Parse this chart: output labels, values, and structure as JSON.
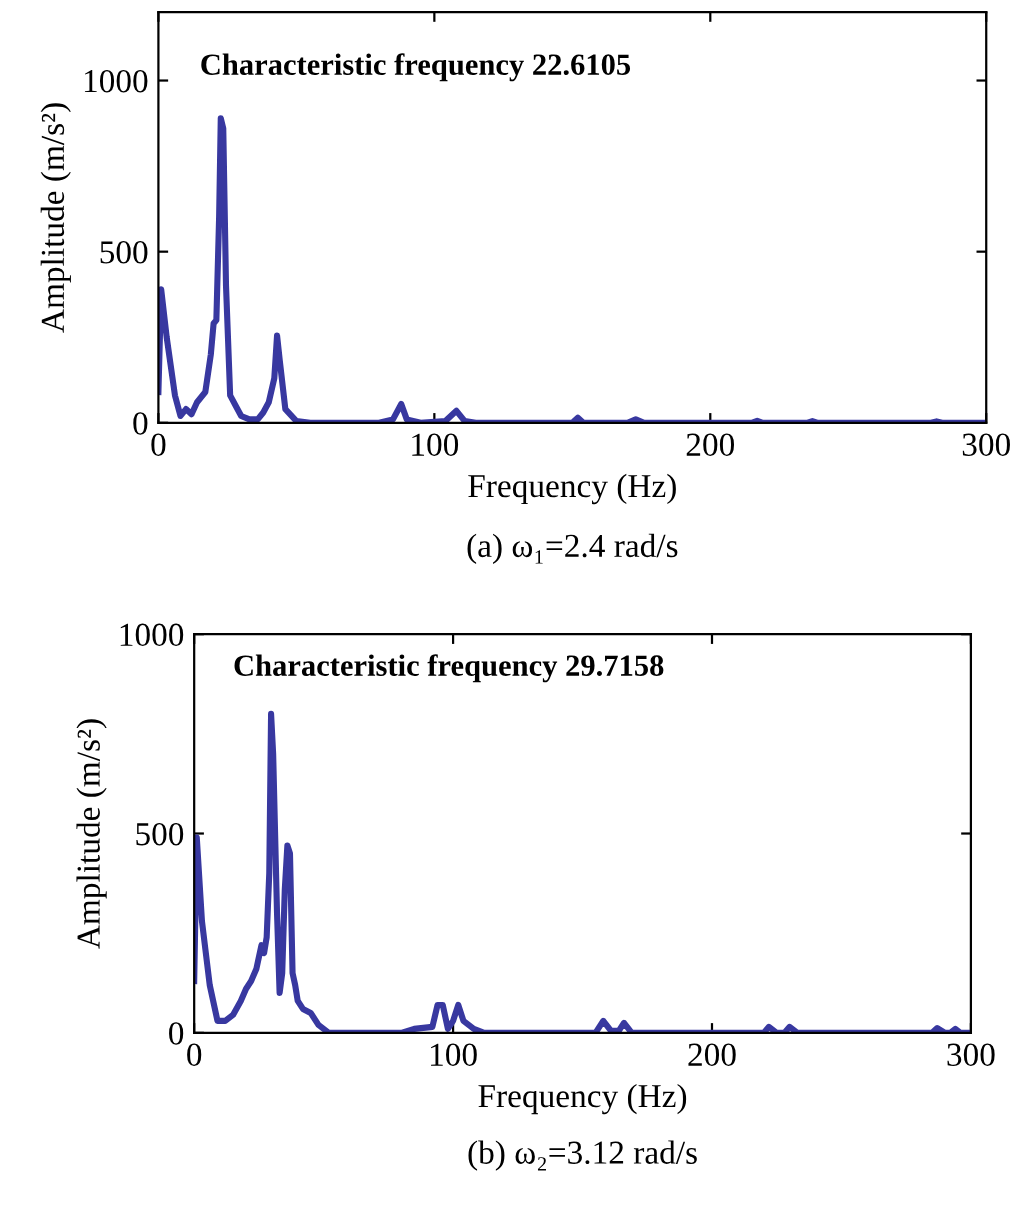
{
  "chart_data": [
    {
      "type": "line",
      "title": "(a) ω₁=2.4 rad/s",
      "xlabel": "Frequency (Hz)",
      "ylabel": "Amplitude (m/s²)",
      "annotations": [
        "Characteristic frequency 22.6105"
      ],
      "xlim": [
        0,
        300
      ],
      "xticks": [
        0,
        100,
        200,
        300
      ],
      "ylim": [
        0,
        1200
      ],
      "yticks": [
        0,
        500,
        1000
      ],
      "grid": false,
      "legend": false,
      "marker": "none",
      "line_style": "solid",
      "series": [
        {
          "color": "#3838a0",
          "x": [
            0,
            1,
            3,
            6,
            8,
            10,
            12,
            14,
            17,
            19,
            20,
            21,
            22,
            22.6,
            23.5,
            24.5,
            26,
            28,
            30,
            33,
            36,
            38,
            40,
            42,
            43,
            44,
            46,
            50,
            55,
            80,
            85,
            88,
            90,
            95,
            104,
            108,
            111,
            115,
            150,
            152,
            154,
            170,
            173,
            176,
            215,
            217,
            219,
            235,
            237,
            239,
            280,
            282,
            284,
            300
          ],
          "values": [
            90,
            390,
            250,
            80,
            20,
            40,
            25,
            60,
            90,
            200,
            290,
            300,
            600,
            890,
            860,
            400,
            80,
            50,
            20,
            10,
            10,
            30,
            60,
            130,
            255,
            180,
            40,
            5,
            0,
            0,
            10,
            55,
            10,
            0,
            5,
            35,
            5,
            0,
            0,
            15,
            0,
            0,
            10,
            0,
            0,
            6,
            0,
            0,
            5,
            0,
            0,
            4,
            0,
            0
          ]
        }
      ]
    },
    {
      "type": "line",
      "title": "(b) ω₂=3.12 rad/s",
      "xlabel": "Frequency (Hz)",
      "ylabel": "Amplitude (m/s²)",
      "annotations": [
        "Characteristic frequency 29.7158"
      ],
      "xlim": [
        0,
        300
      ],
      "xticks": [
        0,
        100,
        200,
        300
      ],
      "ylim": [
        0,
        1000
      ],
      "yticks": [
        0,
        500,
        1000
      ],
      "grid": false,
      "legend": false,
      "marker": "none",
      "line_style": "solid",
      "series": [
        {
          "color": "#3838a0",
          "x": [
            0,
            1,
            3,
            6,
            9,
            12,
            15,
            18,
            20,
            22,
            24,
            26,
            27,
            28,
            29,
            29.7,
            30.5,
            32,
            33,
            34,
            35,
            36,
            37,
            38,
            39,
            40,
            42,
            45,
            48,
            52,
            80,
            85,
            92,
            94,
            96,
            98,
            100,
            102,
            104,
            108,
            112,
            155,
            158,
            161,
            164,
            166,
            169,
            220,
            222,
            225,
            228,
            230,
            233,
            285,
            287,
            290,
            292,
            294,
            296,
            300
          ],
          "values": [
            130,
            490,
            280,
            120,
            30,
            30,
            45,
            80,
            110,
            130,
            160,
            220,
            200,
            240,
            400,
            800,
            700,
            300,
            100,
            150,
            360,
            470,
            450,
            150,
            120,
            80,
            60,
            50,
            20,
            0,
            0,
            10,
            15,
            70,
            70,
            10,
            30,
            70,
            30,
            10,
            0,
            0,
            30,
            5,
            5,
            25,
            0,
            0,
            15,
            0,
            0,
            15,
            0,
            0,
            12,
            0,
            0,
            10,
            0,
            0
          ]
        }
      ]
    }
  ]
}
